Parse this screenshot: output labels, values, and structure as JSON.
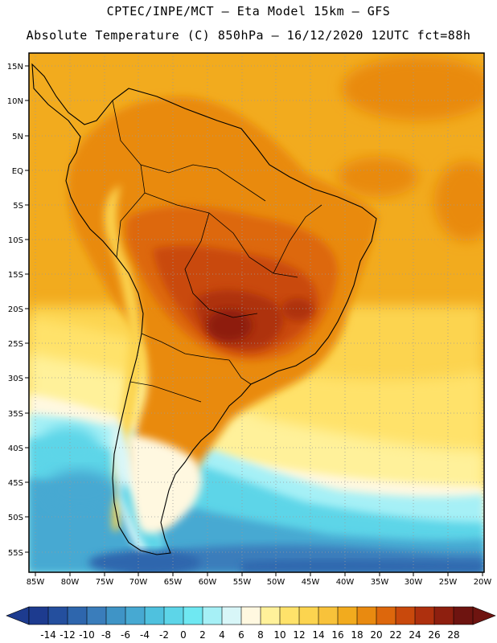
{
  "header": {
    "title_line1": "CPTEC/INPE/MCT –  Eta Model 15km – GFS",
    "title_line2": "Absolute Temperature (C) 850hPa – 16/12/2020 12UTC fct=88h"
  },
  "map": {
    "lat_labels": [
      "15N",
      "10N",
      "5N",
      "EQ",
      "5S",
      "10S",
      "15S",
      "20S",
      "25S",
      "30S",
      "35S",
      "40S",
      "45S",
      "50S",
      "55S"
    ],
    "lon_labels": [
      "85W",
      "80W",
      "75W",
      "70W",
      "65W",
      "60W",
      "55W",
      "50W",
      "45W",
      "40W",
      "35W",
      "30W",
      "25W",
      "20W"
    ]
  },
  "colorbar": {
    "labels": [
      "-14",
      "-12",
      "-10",
      "-8",
      "-6",
      "-4",
      "-2",
      "0",
      "2",
      "4",
      "6",
      "8",
      "10",
      "12",
      "14",
      "16",
      "18",
      "20",
      "22",
      "24",
      "26",
      "28"
    ],
    "colors": [
      "#1d3b8f",
      "#244f9e",
      "#2e66ad",
      "#3a7dbb",
      "#3f94c6",
      "#47a9d2",
      "#4fc1de",
      "#5dd5e8",
      "#6fe8f2",
      "#a6f0f6",
      "#d8f6f8",
      "#fff8e0",
      "#fff19a",
      "#ffe26a",
      "#fcd44f",
      "#f8c23a",
      "#f2ab1e",
      "#e98a10",
      "#dd670c",
      "#c9490c",
      "#ae300e",
      "#8e1f0f",
      "#6e1410"
    ]
  }
}
